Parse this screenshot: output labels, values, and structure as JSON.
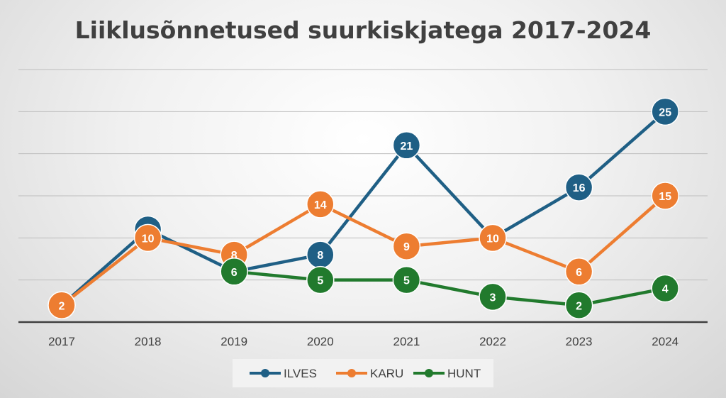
{
  "chart_data": {
    "type": "line",
    "title": "Liiklusõnnetused suurkiskjatega 2017-2024",
    "categories": [
      "2017",
      "2018",
      "2019",
      "2020",
      "2021",
      "2022",
      "2023",
      "2024"
    ],
    "ylim": [
      0,
      30
    ],
    "grid": true,
    "y_tick_labels_visible": false,
    "legend_position": "bottom",
    "series": [
      {
        "name": "ILVES",
        "color": "#1f5f85",
        "values": [
          2,
          11,
          6,
          8,
          21,
          10,
          16,
          25
        ]
      },
      {
        "name": "KARU",
        "color": "#ed7d31",
        "values": [
          2,
          10,
          8,
          14,
          9,
          10,
          6,
          15
        ]
      },
      {
        "name": "HUNT",
        "color": "#217a2d",
        "values": [
          null,
          null,
          6,
          5,
          5,
          3,
          2,
          4
        ]
      }
    ]
  }
}
